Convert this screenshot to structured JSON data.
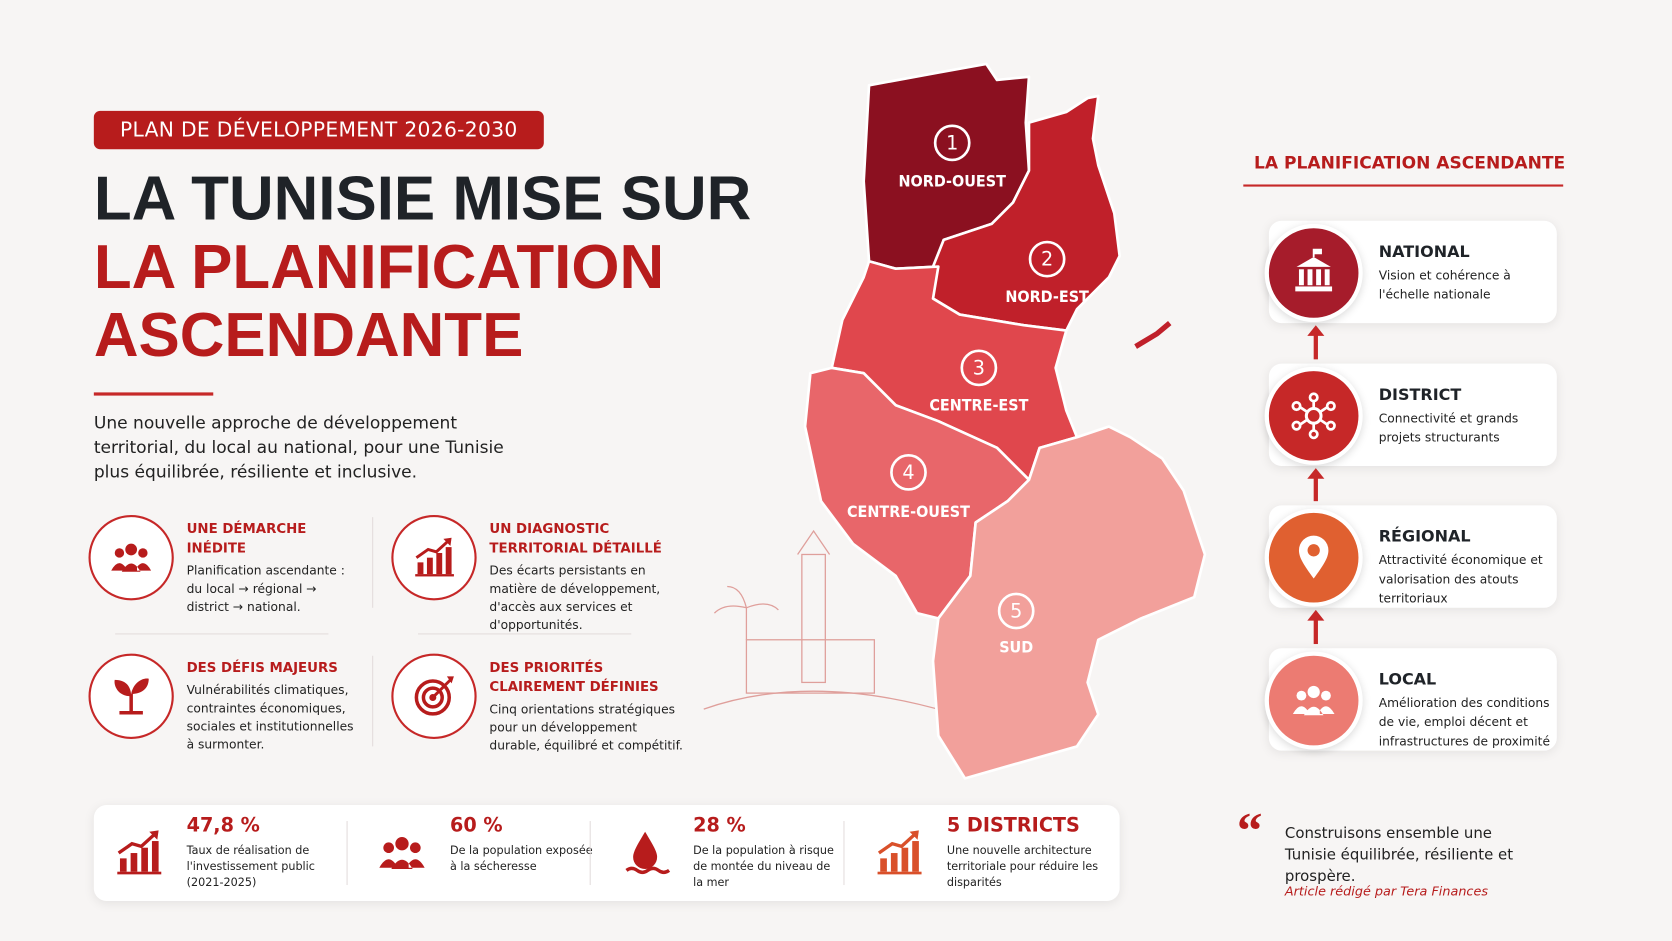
{
  "header": {
    "badge": "PLAN DE DÉVELOPPEMENT 2026-2030",
    "title_line1": "LA TUNISIE MISE SUR",
    "title_line2": "LA PLANIFICATION",
    "title_line3": "ASCENDANTE",
    "intro": "Une nouvelle approche de développement territorial, du local au national, pour une Tunisie plus équilibrée, résiliente et inclusive."
  },
  "features": [
    {
      "title": "UNE DÉMARCHE INÉDITE",
      "text": "Planification ascendante : du local → régional → district → national."
    },
    {
      "title": "UN DIAGNOSTIC TERRITORIAL DÉTAILLÉ",
      "text": "Des écarts persistants en matière de développement, d'accès aux services et d'opportunités."
    },
    {
      "title": "DES DÉFIS MAJEURS",
      "text": "Vulnérabilités climatiques, contraintes économiques, sociales et institutionnelles à surmonter."
    },
    {
      "title": "DES PRIORITÉS CLAIREMENT DÉFINIES",
      "text": "Cinq orientations stratégiques pour un développement durable, équilibré et compétitif."
    }
  ],
  "map": {
    "regions": [
      {
        "number": "1",
        "name": "NORD-OUEST"
      },
      {
        "number": "2",
        "name": "NORD-EST"
      },
      {
        "number": "3",
        "name": "CENTRE-EST"
      },
      {
        "number": "4",
        "name": "CENTRE-OUEST"
      },
      {
        "number": "5",
        "name": "SUD"
      }
    ]
  },
  "stats": [
    {
      "value": "47,8 %",
      "text": "Taux de réalisation de l'investissement public (2021-2025)"
    },
    {
      "value": "60 %",
      "text": "De la population exposée à la sécheresse"
    },
    {
      "value": "28 %",
      "text": "De la population à risque de montée du niveau de la mer"
    },
    {
      "value": "5 DISTRICTS",
      "text": "Une nouvelle architecture territoriale pour réduire les disparités"
    }
  ],
  "ladder": {
    "title": "LA PLANIFICATION ASCENDANTE",
    "levels": [
      {
        "name": "NATIONAL",
        "text": "Vision et cohérence à l'échelle nationale"
      },
      {
        "name": "DISTRICT",
        "text": "Connectivité et grands projets structurants"
      },
      {
        "name": "RÉGIONAL",
        "text": "Attractivité économique et valorisation des atouts territoriaux"
      },
      {
        "name": "LOCAL",
        "text": "Amélioration des conditions de vie, emploi décent et infrastructures de proximité"
      }
    ]
  },
  "quote": "Construisons ensemble une Tunisie équilibrée, résiliente et prospère.",
  "credit": "Article rédigé par Tera Finances"
}
